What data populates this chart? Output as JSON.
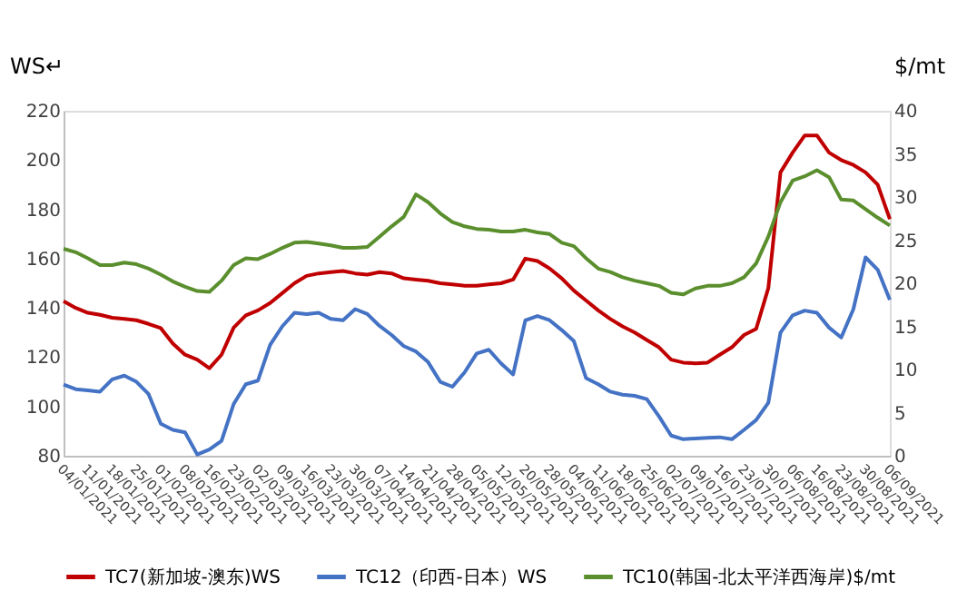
{
  "chart_data": {
    "type": "line",
    "ylabel": "WS↵",
    "y2label": "$/mt",
    "categories": [
      "04/01/2021",
      null,
      "11/01/2021",
      null,
      "18/01/2021",
      null,
      "25/01/2021",
      null,
      "01/02/2021",
      null,
      "08/02/2021",
      null,
      "16/02/2021",
      null,
      "23/02/2021",
      null,
      "02/03/2021",
      null,
      "09/03/2021",
      null,
      "16/03/2021",
      null,
      "23/03/2021",
      null,
      "30/03/2021",
      null,
      "07/04/2021",
      null,
      "14/04/2021",
      null,
      "21/04/2021",
      null,
      "28/04/2021",
      null,
      "05/05/2021",
      null,
      "12/05/2021",
      null,
      "20/05/2021",
      null,
      "28/05/2021",
      null,
      "04/06/2021",
      null,
      "11/06/2021",
      null,
      "18/06/2021",
      null,
      "25/06/2021",
      null,
      "02/07/2021",
      null,
      "09/07/2021",
      null,
      "16/07/2021",
      null,
      "23/07/2021",
      null,
      "30/07/2021",
      null,
      "06/08/2021",
      null,
      "16/08/2021",
      null,
      "23/08/2021",
      null,
      "30/08/2021",
      null,
      "06/09/2021"
    ],
    "series": [
      {
        "name": "TC7(新加坡-澳东)WS",
        "color": "#c00000",
        "values": [
          142.7,
          140,
          138,
          137.2,
          136,
          135.5,
          135,
          133.5,
          131.8,
          125.5,
          121,
          119,
          115.5,
          121,
          132,
          137,
          139,
          142,
          146,
          150,
          153,
          154,
          154.5,
          155,
          154,
          153.5,
          154.5,
          154,
          152,
          151.5,
          151,
          150,
          149.5,
          149,
          149,
          149.5,
          150,
          151.5,
          160,
          159,
          156,
          152,
          147,
          143,
          139,
          135.5,
          132.5,
          130,
          127,
          124,
          119,
          117.8,
          117.5,
          117.8,
          121,
          124,
          129,
          131.5,
          148,
          195,
          203,
          210,
          210,
          203,
          200,
          198,
          195,
          190,
          176
        ]
      },
      {
        "name": "TC12（印西-日本）WS",
        "color": "#4472c4",
        "values": [
          108.9,
          107,
          106.5,
          106,
          111,
          112.5,
          110,
          105,
          93,
          90.5,
          89.5,
          80.5,
          82.5,
          86,
          101,
          109,
          110.5,
          125,
          132.5,
          138,
          137.5,
          138,
          135.5,
          135,
          139.5,
          137.5,
          132.7,
          129,
          124.5,
          122.3,
          118,
          110,
          108,
          113.8,
          121.5,
          123,
          117.5,
          113,
          134.9,
          136.7,
          135,
          131,
          126.5,
          111.5,
          109,
          106,
          104.8,
          104.3,
          103,
          96,
          88.2,
          86.7,
          87,
          87.3,
          87.5,
          86.7,
          90.5,
          94.5,
          101.5,
          130,
          137,
          138.9,
          138,
          132,
          128,
          139.5,
          160.5,
          155.5,
          143.3
        ]
      },
      {
        "name": "TC10(韩国-北太平洋西海岸)$/mt",
        "color": "#5b8f2e",
        "axis": "y2",
        "values": [
          24.0,
          23.6,
          22.9,
          22.1,
          22.1,
          22.4,
          22.2,
          21.7,
          21.0,
          20.2,
          19.6,
          19.1,
          19.0,
          20.3,
          22.1,
          22.9,
          22.8,
          23.4,
          24.1,
          24.7,
          24.8,
          24.6,
          24.4,
          24.1,
          24.1,
          24.2,
          25.4,
          26.6,
          27.7,
          30.3,
          29.4,
          28.1,
          27.1,
          26.6,
          26.3,
          26.2,
          26.0,
          26.0,
          26.2,
          25.9,
          25.7,
          24.7,
          24.3,
          22.9,
          21.7,
          21.3,
          20.7,
          20.3,
          20.0,
          19.7,
          18.9,
          18.7,
          19.4,
          19.7,
          19.7,
          20.0,
          20.7,
          22.3,
          25.4,
          29.4,
          31.9,
          32.4,
          33.1,
          32.3,
          29.7,
          29.6,
          28.6,
          27.6,
          26.7
        ]
      }
    ],
    "ylim": [
      80,
      220
    ],
    "yticks": [
      80,
      100,
      120,
      140,
      160,
      180,
      200,
      220
    ],
    "y2lim": [
      0,
      40
    ],
    "y2ticks": [
      0,
      5,
      10,
      15,
      20,
      25,
      30,
      35,
      40
    ],
    "grid": false,
    "legend": "bottom"
  }
}
